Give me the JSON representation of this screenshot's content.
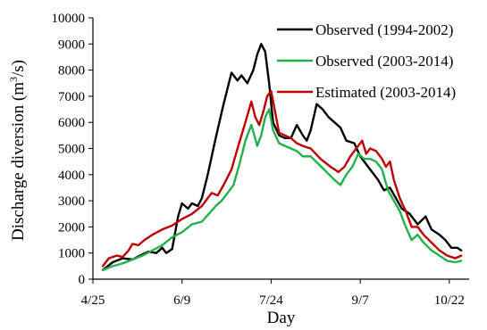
{
  "chart_data": {
    "type": "line",
    "xlabel": "Day",
    "ylabel_main": "Discharge diversion (m",
    "ylabel_sup": "3",
    "ylabel_tail": "/s)",
    "xlim": [
      0,
      190
    ],
    "ylim": [
      0,
      10000
    ],
    "yticks": [
      0,
      1000,
      2000,
      3000,
      4000,
      5000,
      6000,
      7000,
      8000,
      9000,
      10000
    ],
    "xticks": [
      {
        "pos": 0,
        "label": "4/25"
      },
      {
        "pos": 45,
        "label": "6/9"
      },
      {
        "pos": 90,
        "label": "7/24"
      },
      {
        "pos": 135,
        "label": "9/7"
      },
      {
        "pos": 180,
        "label": "10/22"
      }
    ],
    "legend_position": "top-right",
    "series": [
      {
        "name": "Observed (1994-2002)",
        "color": "#000000",
        "points": [
          [
            5,
            350
          ],
          [
            10,
            650
          ],
          [
            15,
            800
          ],
          [
            20,
            750
          ],
          [
            25,
            950
          ],
          [
            28,
            1050
          ],
          [
            32,
            1000
          ],
          [
            35,
            1200
          ],
          [
            37,
            1000
          ],
          [
            40,
            1150
          ],
          [
            43,
            2400
          ],
          [
            45,
            2900
          ],
          [
            48,
            2700
          ],
          [
            50,
            2900
          ],
          [
            53,
            2800
          ],
          [
            55,
            3100
          ],
          [
            58,
            4000
          ],
          [
            62,
            5400
          ],
          [
            66,
            6700
          ],
          [
            70,
            7900
          ],
          [
            73,
            7600
          ],
          [
            75,
            7800
          ],
          [
            78,
            7500
          ],
          [
            81,
            8000
          ],
          [
            83,
            8600
          ],
          [
            85,
            9000
          ],
          [
            87,
            8700
          ],
          [
            89,
            7500
          ],
          [
            91,
            6000
          ],
          [
            94,
            5500
          ],
          [
            97,
            5400
          ],
          [
            100,
            5400
          ],
          [
            103,
            5900
          ],
          [
            106,
            5500
          ],
          [
            108,
            5300
          ],
          [
            110,
            5700
          ],
          [
            113,
            6700
          ],
          [
            116,
            6500
          ],
          [
            119,
            6200
          ],
          [
            122,
            6000
          ],
          [
            125,
            5800
          ],
          [
            128,
            5300
          ],
          [
            132,
            5200
          ],
          [
            135,
            4700
          ],
          [
            138,
            4400
          ],
          [
            141,
            4100
          ],
          [
            144,
            3800
          ],
          [
            147,
            3400
          ],
          [
            150,
            3500
          ],
          [
            153,
            3100
          ],
          [
            156,
            2700
          ],
          [
            160,
            2500
          ],
          [
            164,
            2100
          ],
          [
            168,
            2400
          ],
          [
            171,
            1900
          ],
          [
            175,
            1700
          ],
          [
            178,
            1500
          ],
          [
            181,
            1200
          ],
          [
            184,
            1200
          ],
          [
            186,
            1100
          ]
        ]
      },
      {
        "name": "Observed (2003-2014)",
        "color": "#22b14c",
        "points": [
          [
            5,
            350
          ],
          [
            10,
            500
          ],
          [
            15,
            600
          ],
          [
            20,
            750
          ],
          [
            25,
            900
          ],
          [
            30,
            1100
          ],
          [
            35,
            1300
          ],
          [
            40,
            1600
          ],
          [
            45,
            1800
          ],
          [
            50,
            2100
          ],
          [
            55,
            2200
          ],
          [
            58,
            2450
          ],
          [
            62,
            2800
          ],
          [
            65,
            3000
          ],
          [
            68,
            3300
          ],
          [
            71,
            3600
          ],
          [
            74,
            4400
          ],
          [
            77,
            5300
          ],
          [
            80,
            5900
          ],
          [
            83,
            5100
          ],
          [
            85,
            5500
          ],
          [
            87,
            6200
          ],
          [
            89,
            6500
          ],
          [
            91,
            5700
          ],
          [
            94,
            5200
          ],
          [
            97,
            5100
          ],
          [
            100,
            5000
          ],
          [
            103,
            4900
          ],
          [
            106,
            4700
          ],
          [
            110,
            4700
          ],
          [
            114,
            4400
          ],
          [
            118,
            4100
          ],
          [
            122,
            3800
          ],
          [
            125,
            3600
          ],
          [
            128,
            4000
          ],
          [
            131,
            4300
          ],
          [
            134,
            4800
          ],
          [
            137,
            4600
          ],
          [
            140,
            4600
          ],
          [
            143,
            4500
          ],
          [
            146,
            4200
          ],
          [
            149,
            3400
          ],
          [
            152,
            3000
          ],
          [
            155,
            2600
          ],
          [
            158,
            2000
          ],
          [
            161,
            1500
          ],
          [
            164,
            1700
          ],
          [
            167,
            1400
          ],
          [
            171,
            1100
          ],
          [
            175,
            900
          ],
          [
            179,
            700
          ],
          [
            183,
            650
          ],
          [
            186,
            700
          ]
        ]
      },
      {
        "name": "Estimated (2003-2014)",
        "color": "#c00000",
        "points": [
          [
            5,
            500
          ],
          [
            8,
            800
          ],
          [
            12,
            900
          ],
          [
            15,
            850
          ],
          [
            18,
            1100
          ],
          [
            20,
            1350
          ],
          [
            23,
            1300
          ],
          [
            26,
            1500
          ],
          [
            30,
            1700
          ],
          [
            35,
            1900
          ],
          [
            40,
            2050
          ],
          [
            45,
            2300
          ],
          [
            50,
            2500
          ],
          [
            55,
            2800
          ],
          [
            60,
            3300
          ],
          [
            63,
            3200
          ],
          [
            66,
            3600
          ],
          [
            70,
            4200
          ],
          [
            73,
            5000
          ],
          [
            77,
            6000
          ],
          [
            80,
            6800
          ],
          [
            82,
            6200
          ],
          [
            84,
            5900
          ],
          [
            86,
            6400
          ],
          [
            88,
            7000
          ],
          [
            90,
            7200
          ],
          [
            92,
            6400
          ],
          [
            94,
            5600
          ],
          [
            97,
            5500
          ],
          [
            100,
            5400
          ],
          [
            103,
            5200
          ],
          [
            106,
            5100
          ],
          [
            110,
            5000
          ],
          [
            115,
            4600
          ],
          [
            120,
            4300
          ],
          [
            124,
            4100
          ],
          [
            127,
            4300
          ],
          [
            130,
            4700
          ],
          [
            133,
            5000
          ],
          [
            136,
            5300
          ],
          [
            138,
            4800
          ],
          [
            140,
            5000
          ],
          [
            143,
            4900
          ],
          [
            146,
            4600
          ],
          [
            148,
            4300
          ],
          [
            150,
            4500
          ],
          [
            152,
            3800
          ],
          [
            155,
            3100
          ],
          [
            158,
            2600
          ],
          [
            161,
            2000
          ],
          [
            164,
            2000
          ],
          [
            167,
            1700
          ],
          [
            171,
            1400
          ],
          [
            175,
            1100
          ],
          [
            179,
            900
          ],
          [
            183,
            800
          ],
          [
            186,
            900
          ]
        ]
      }
    ]
  }
}
